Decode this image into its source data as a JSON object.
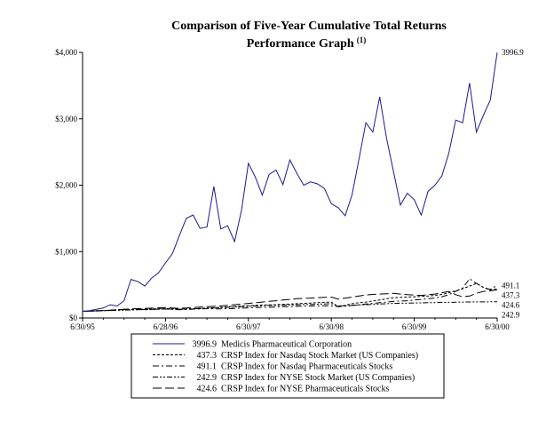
{
  "chart_data": {
    "type": "line",
    "title": "Comparison of Five-Year Cumulative Total Returns",
    "subtitle": "Performance Graph",
    "subtitle_superscript": "(1)",
    "xlabel": "",
    "ylabel": "",
    "ylim": [
      0,
      4000
    ],
    "y_ticks": [
      {
        "value": 0,
        "label": "$0"
      },
      {
        "value": 1000,
        "label": "$1,000"
      },
      {
        "value": 2000,
        "label": "$2,000"
      },
      {
        "value": 3000,
        "label": "$3,000"
      },
      {
        "value": 4000,
        "label": "$4,000"
      }
    ],
    "xlim": [
      0,
      60
    ],
    "x_ticks": [
      {
        "value": 0,
        "label": "6/30/95"
      },
      {
        "value": 12,
        "label": "6/28/96"
      },
      {
        "value": 24,
        "label": "6/30/97"
      },
      {
        "value": 36,
        "label": "6/30/98"
      },
      {
        "value": 48,
        "label": "6/30/99"
      },
      {
        "value": 60,
        "label": "6/30/00"
      }
    ],
    "grid": false,
    "legend_position": "bottom",
    "series": [
      {
        "name": "Medicis Pharmaceutical Corporation",
        "final_label": "3996.9",
        "legend_value": "3996.9",
        "dash": "solid",
        "values": [
          100,
          110,
          130,
          150,
          200,
          180,
          260,
          580,
          550,
          480,
          600,
          680,
          830,
          970,
          1240,
          1500,
          1550,
          1350,
          1370,
          1980,
          1340,
          1390,
          1150,
          1620,
          2330,
          2120,
          1850,
          2160,
          2230,
          2010,
          2380,
          2180,
          2000,
          2050,
          2020,
          1950,
          1720,
          1660,
          1540,
          1860,
          2390,
          2940,
          2800,
          3330,
          2700,
          2200,
          1700,
          1880,
          1780,
          1550,
          1910,
          2000,
          2140,
          2480,
          2980,
          2940,
          3540,
          2800,
          3050,
          3280,
          3997
        ]
      },
      {
        "name": "CRSP Index for Nasdaq Stock Market (US Companies)",
        "final_label": "437.3",
        "legend_value": "437.3",
        "dash": "dashed",
        "values": [
          100,
          105,
          110,
          112,
          115,
          120,
          125,
          128,
          130,
          132,
          135,
          140,
          145,
          138,
          132,
          135,
          140,
          145,
          150,
          155,
          160,
          168,
          175,
          180,
          185,
          190,
          195,
          198,
          200,
          205,
          210,
          215,
          220,
          225,
          230,
          235,
          240,
          170,
          190,
          215,
          230,
          240,
          255,
          270,
          290,
          305,
          310,
          315,
          320,
          325,
          330,
          340,
          355,
          380,
          410,
          440,
          480,
          520,
          460,
          420,
          437
        ]
      },
      {
        "name": "CRSP Index for Nasdaq Pharmaceuticals Stocks",
        "final_label": "491.1",
        "legend_value": "491.1",
        "dash": "dashdot",
        "values": [
          100,
          102,
          106,
          110,
          115,
          125,
          130,
          128,
          126,
          124,
          128,
          132,
          135,
          130,
          125,
          128,
          132,
          136,
          140,
          138,
          136,
          140,
          144,
          148,
          152,
          156,
          160,
          162,
          165,
          168,
          172,
          175,
          178,
          180,
          182,
          185,
          180,
          170,
          178,
          188,
          200,
          210,
          220,
          230,
          240,
          250,
          255,
          260,
          270,
          280,
          290,
          300,
          320,
          350,
          400,
          450,
          590,
          520,
          460,
          430,
          491
        ]
      },
      {
        "name": "CRSP Index for NYSE Stock Market (US Companies)",
        "final_label": "242.9",
        "legend_value": "242.9",
        "dash": "dashdotdot",
        "values": [
          100,
          103,
          106,
          109,
          112,
          115,
          118,
          121,
          124,
          127,
          130,
          133,
          136,
          134,
          132,
          135,
          138,
          142,
          146,
          150,
          155,
          160,
          165,
          170,
          175,
          180,
          185,
          188,
          190,
          193,
          196,
          199,
          202,
          205,
          208,
          211,
          214,
          180,
          185,
          190,
          195,
          200,
          205,
          210,
          215,
          220,
          222,
          224,
          226,
          228,
          230,
          232,
          234,
          236,
          238,
          240,
          241,
          242,
          242,
          243,
          243
        ]
      },
      {
        "name": "CRSP Index for NYSE Pharmaceuticals Stocks",
        "final_label": "424.6",
        "legend_value": "424.6",
        "dash": "longdash",
        "values": [
          100,
          104,
          108,
          112,
          118,
          124,
          130,
          136,
          140,
          144,
          148,
          152,
          158,
          150,
          145,
          150,
          158,
          165,
          170,
          175,
          180,
          190,
          200,
          210,
          220,
          230,
          240,
          250,
          260,
          270,
          280,
          290,
          295,
          300,
          305,
          310,
          315,
          285,
          300,
          315,
          330,
          345,
          355,
          360,
          365,
          370,
          360,
          350,
          345,
          340,
          350,
          360,
          380,
          400,
          350,
          320,
          330,
          370,
          400,
          410,
          425
        ]
      }
    ]
  }
}
